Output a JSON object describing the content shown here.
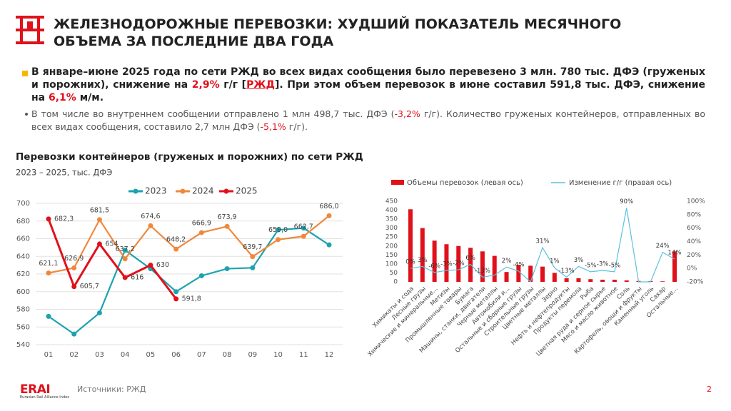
{
  "header": {
    "title_lines": [
      "ЖЕЛЕЗНОДОРОЖНЫЕ ПЕРЕВОЗКИ: ХУДШИЙ ПОКАЗАТЕЛЬ МЕСЯЧНОГО",
      "ОБЪЕМА ЗА ПОСЛЕДНИЕ ДВА ГОДА"
    ],
    "bullets": [
      {
        "segments": [
          "В январе–июне 2025 года по сети РЖД во всех видах сообщения было перевезено 3 млн. 780 тыс. ДФЭ (груженых и порожних), снижение на ",
          "2,9%",
          " г/г [",
          "РЖД",
          "]. При этом объем перевозок в июне составил 591,8 тыс. ДФЭ, снижение на ",
          "6,1%",
          " м/м."
        ]
      },
      {
        "segments": [
          "В том числе во внутреннем сообщении отправлено 1 млн 498,7 тыс. ДФЭ (",
          "-3,2%",
          " г/г). Количество груженых контейнеров, отправленных во всех видах сообщения, составило 2,7 млн ДФЭ (",
          "-5,1%",
          " г/г)."
        ]
      }
    ]
  },
  "chart_data": [
    {
      "type": "line",
      "title": "Перевозки контейнеров (груженых и порожних) по сети РЖД",
      "subtitle": "2023 – 2025, тыс. ДФЭ",
      "categories": [
        "01",
        "02",
        "03",
        "04",
        "05",
        "06",
        "07",
        "08",
        "09",
        "10",
        "11",
        "12"
      ],
      "ylim": [
        540,
        700
      ],
      "yticks": [
        540,
        560,
        580,
        600,
        620,
        640,
        660,
        680,
        700
      ],
      "grid": true,
      "series": [
        {
          "name": "2023",
          "color": "#1ba3ae",
          "values": [
            572,
            552,
            576,
            647,
            626,
            600,
            618,
            626,
            627,
            670,
            672,
            653
          ]
        },
        {
          "name": "2024",
          "color": "#f0883c",
          "values": [
            621.1,
            626.9,
            681.5,
            637.2,
            674.6,
            648.2,
            666.9,
            673.9,
            639.7,
            659.0,
            662.7,
            686.0
          ],
          "value_labels": [
            "621,1",
            "626,9",
            "681,5",
            "637,2",
            "674,6",
            "648,2",
            "666,9",
            "673,9",
            "639,7",
            "659,0",
            "662,7",
            "686,0"
          ]
        },
        {
          "name": "2025",
          "color": "#e0111b",
          "values": [
            682.3,
            605.7,
            654,
            616,
            630,
            591.8,
            null,
            null,
            null,
            null,
            null,
            null
          ],
          "value_labels": [
            "682,3",
            "605,7",
            "654",
            "616",
            "630",
            "591,8",
            null,
            null,
            null,
            null,
            null,
            null
          ]
        }
      ]
    },
    {
      "type": "bar_line",
      "categories": [
        "Химикаты и сода",
        "Лесные грузы",
        "Химические и минеральные...",
        "Метизы",
        "Промышленные товары",
        "Бумага",
        "Машины, станки, двигатели",
        "Черные металлы",
        "Автомобили и...",
        "Остальные и сборные грузы",
        "Строительные грузы",
        "Цветные металлы",
        "Зерно",
        "Нефть и нефтепродукты",
        "Продукты перемола",
        "Рыба",
        "Цветная руда и серное сырье",
        "Мясо и масло животное",
        "Соль",
        "Картофель, овощи и фрукты",
        "Каменный уголь",
        "Сахар",
        "Остальные..."
      ],
      "ylim": [
        0,
        450
      ],
      "yticks": [
        0,
        50,
        100,
        150,
        200,
        250,
        300,
        350,
        400,
        450
      ],
      "y2lim": [
        -20,
        100
      ],
      "y2ticks": [
        {
          "value": -20,
          "label": "-20%"
        },
        {
          "value": 0,
          "label": "0%"
        },
        {
          "value": 20,
          "label": "20%"
        },
        {
          "value": 40,
          "label": "40%"
        },
        {
          "value": 60,
          "label": "60%"
        },
        {
          "value": 80,
          "label": "80%"
        },
        {
          "value": 100,
          "label": "100%"
        }
      ],
      "grid": false,
      "series": [
        {
          "name": "Объемы перевозок (левая ось)",
          "color": "#e0111b",
          "values": [
            405,
            300,
            230,
            210,
            200,
            190,
            170,
            145,
            55,
            95,
            90,
            85,
            50,
            20,
            20,
            15,
            12,
            12,
            8,
            5,
            4,
            3,
            170
          ]
        },
        {
          "name": "Изменение г/г (правая ось)",
          "color": "#5bc0de",
          "axis": "y2",
          "values": [
            0,
            3,
            -6,
            -3,
            -2,
            6,
            -13,
            -10,
            2,
            -4,
            -20,
            31,
            1,
            -13,
            3,
            -5,
            -3,
            -5,
            90,
            -20,
            -20,
            24,
            14
          ],
          "value_labels": [
            "0%",
            "3%",
            "-6%",
            "-3%",
            "-2%",
            "6%",
            "-13%",
            null,
            "2%",
            "-4%",
            null,
            "31%",
            "1%",
            "-13%",
            "3%",
            "-5%",
            "-3%",
            "-5%",
            "90%",
            null,
            null,
            "24%",
            "14%"
          ]
        }
      ]
    }
  ],
  "footer": {
    "logo": "ERAI",
    "logo_sub": "Eurasian Rail Alliance Index",
    "source": "Источники: РЖД",
    "page": "2"
  }
}
